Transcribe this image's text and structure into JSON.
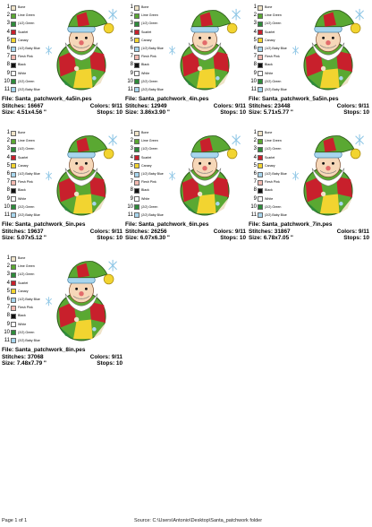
{
  "colors": [
    {
      "num": "1",
      "name": "Bone",
      "hex": "#efe3c8"
    },
    {
      "num": "2",
      "name": "Lime Green",
      "hex": "#5aa832"
    },
    {
      "num": "3",
      "name": "(1/2) Green",
      "hex": "#2e8b3a"
    },
    {
      "num": "4",
      "name": "Scarlet",
      "hex": "#c8202c"
    },
    {
      "num": "5",
      "name": "Canary",
      "hex": "#f2d430"
    },
    {
      "num": "6",
      "name": "(1/2) Baby Blue",
      "hex": "#a8d6ee"
    },
    {
      "num": "7",
      "name": "Flesh Pink",
      "hex": "#f2b9b0"
    },
    {
      "num": "8",
      "name": "Black",
      "hex": "#111111"
    },
    {
      "num": "9",
      "name": "White",
      "hex": "#ffffff"
    },
    {
      "num": "10",
      "name": "(2/2) Green",
      "hex": "#2e8b3a"
    },
    {
      "num": "11",
      "name": "(2/2) Baby Blue",
      "hex": "#a8d6ee"
    }
  ],
  "labels": {
    "file": "File:",
    "stitches": "Stitches:",
    "colors": "Colors:",
    "size": "Size:",
    "stops": "Stops:"
  },
  "designs": [
    {
      "file": "Santa_patchwork_4a5in.pes",
      "stitches": "16667",
      "colors": "9/11",
      "size": "4.51x4.56 \"",
      "stops": "10"
    },
    {
      "file": "Santa_patchwork_4in.pes",
      "stitches": "12949",
      "colors": "9/11",
      "size": "3.86x3.90 \"",
      "stops": "10"
    },
    {
      "file": "Santa_patchwork_5a5in.pes",
      "stitches": "23448",
      "colors": "9/11",
      "size": "5.71x5.77 \"",
      "stops": "10"
    },
    {
      "file": "Santa_patchwork_5in.pes",
      "stitches": "19637",
      "colors": "9/11",
      "size": "5.07x5.12 \"",
      "stops": "10"
    },
    {
      "file": "Santa_patchwork_6in.pes",
      "stitches": "26256",
      "colors": "9/11",
      "size": "6.07x6.30 \"",
      "stops": "10"
    },
    {
      "file": "Santa_patchwork_7in.pes",
      "stitches": "31867",
      "colors": "9/11",
      "size": "6.78x7.05 \"",
      "stops": "10"
    },
    {
      "file": "Santa_patchwork_8in.pes",
      "stitches": "37068",
      "colors": "9/11",
      "size": "7.48x7.79 \"",
      "stops": "10"
    }
  ],
  "footer": {
    "page": "Page 1 of 1",
    "source": "Source: C:\\Users\\Antonio\\Desktop\\Santa_patchwork folder"
  }
}
